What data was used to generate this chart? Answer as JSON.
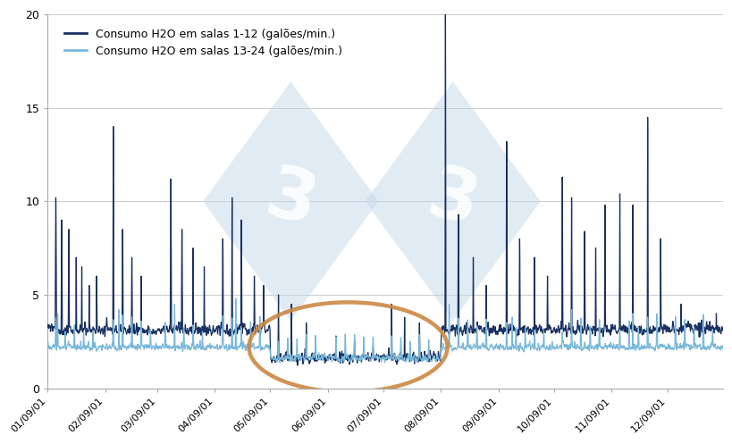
{
  "legend_line1": "Consumo H2O em salas 1-12 (galões/min.)",
  "legend_line2": "Consumo H2O em salas 13-24 (galões/min.)",
  "color_dark": "#1a3060",
  "color_light": "#7ab8d9",
  "background_color": "#ffffff",
  "grid_color": "#cccccc",
  "ylim": [
    0,
    20
  ],
  "yticks": [
    0,
    5,
    10,
    15,
    20
  ],
  "ellipse_color": "#cc8844",
  "watermark_color": "#c5d8e8",
  "figsize": [
    8.2,
    4.97
  ],
  "dpi": 100,
  "xformat": "%m/09/01"
}
